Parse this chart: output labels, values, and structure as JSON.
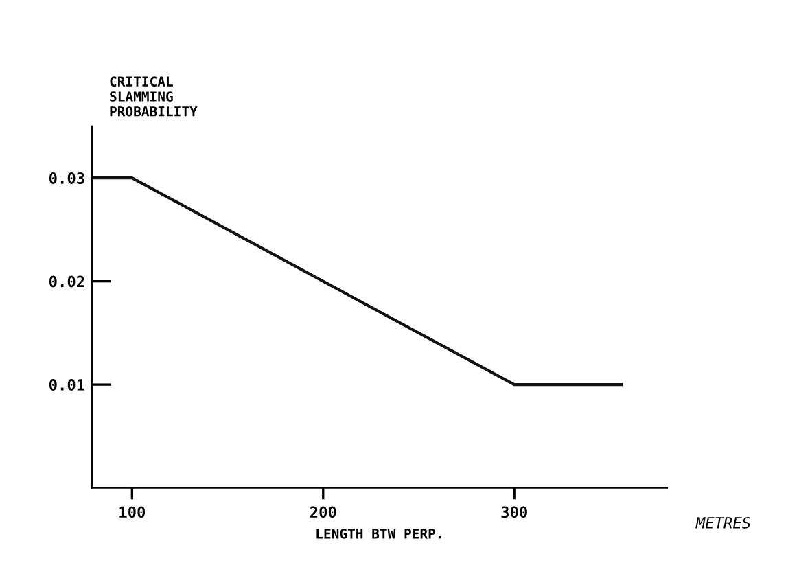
{
  "chart_data": {
    "type": "line",
    "ylabel": "CRITICAL\nSLAMMING\nPROBABILITY",
    "xlabel": "LENGTH BTW PERP.",
    "annotations": [
      "METRES"
    ],
    "x": [
      79,
      100,
      300,
      356
    ],
    "series": [
      {
        "color": "#111111",
        "values": [
          0.03,
          0.03,
          0.01,
          0.01
        ]
      }
    ],
    "xlim": [
      79,
      380
    ],
    "xticks": [
      100,
      200,
      300
    ],
    "ylim": [
      0,
      0.035
    ],
    "yticks": [
      0.01,
      0.02,
      0.03
    ],
    "grid": false,
    "legend": false,
    "marker": "none",
    "line_style": "solid"
  }
}
